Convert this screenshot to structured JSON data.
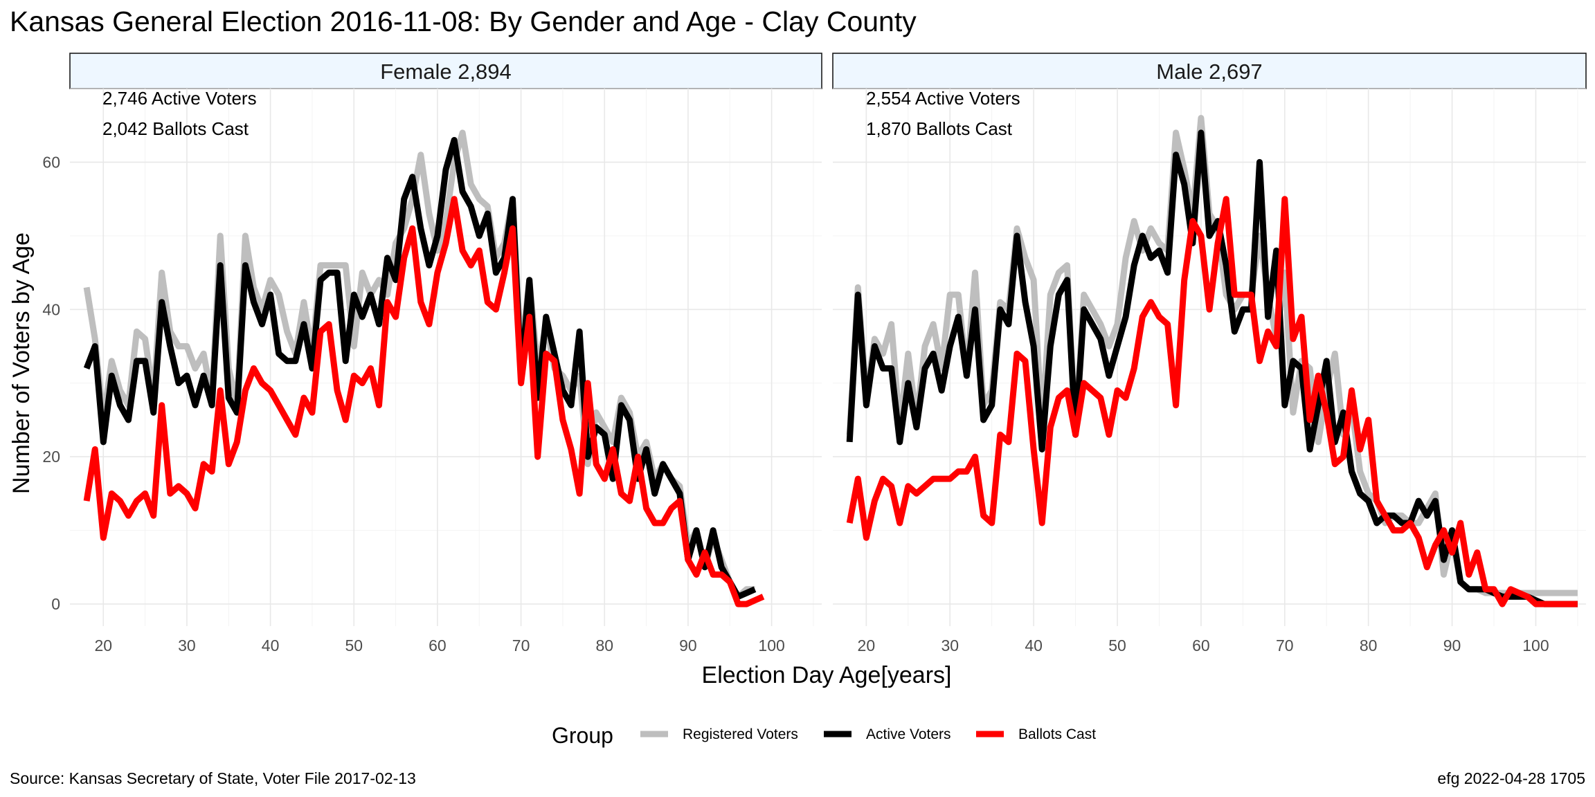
{
  "chart_data": {
    "type": "line",
    "title": "Kansas General Election 2016-11-08:  By Gender and Age - Clay County",
    "xlabel": "Election Day Age[years]",
    "ylabel": "Number of Voters by Age",
    "caption_left": "Source:  Kansas Secretary of State, Voter File  2017-02-13",
    "caption_right": "efg 2022-04-28 1705",
    "legend_title": "Group",
    "legend_position": "bottom",
    "grid": true,
    "xlim": [
      16,
      106
    ],
    "ylim": [
      -3,
      70
    ],
    "x_ticks": [
      20,
      30,
      40,
      50,
      60,
      70,
      80,
      90,
      100
    ],
    "y_ticks": [
      0,
      20,
      40,
      60
    ],
    "series_styles": [
      {
        "key": "registered",
        "name": "Registered Voters",
        "color": "#bebebe"
      },
      {
        "key": "active",
        "name": "Active Voters",
        "color": "#000000"
      },
      {
        "key": "ballots",
        "name": "Ballots Cast",
        "color": "#ff0000"
      }
    ],
    "panels": [
      {
        "strip": "Female 2,894",
        "annotations": [
          "2,746 Active Voters",
          "2,042 Ballots Cast"
        ],
        "x_start": 18,
        "series": {
          "registered": [
            43,
            36,
            25,
            33,
            29,
            27,
            37,
            36,
            28,
            45,
            37,
            35,
            35,
            32,
            34,
            28,
            50,
            32,
            27,
            50,
            43,
            40,
            44,
            42,
            37,
            34,
            41,
            34,
            46,
            46,
            46,
            46,
            35,
            45,
            42,
            44,
            42,
            49,
            51,
            55,
            61,
            53,
            48,
            52,
            60,
            64,
            57,
            55,
            54,
            47,
            49,
            55,
            34,
            44,
            32,
            38,
            32,
            31,
            29,
            31,
            19,
            26,
            24,
            22,
            28,
            26,
            20,
            22,
            17,
            19,
            17,
            16,
            8,
            10,
            5,
            9,
            6,
            3,
            1,
            2,
            2
          ],
          "active": [
            32,
            35,
            22,
            31,
            27,
            25,
            33,
            33,
            26,
            41,
            35,
            30,
            31,
            27,
            31,
            27,
            46,
            28,
            26,
            46,
            41,
            38,
            42,
            34,
            33,
            33,
            38,
            32,
            44,
            45,
            45,
            33,
            42,
            39,
            42,
            38,
            47,
            44,
            55,
            58,
            51,
            46,
            50,
            59,
            63,
            56,
            54,
            50,
            53,
            45,
            47,
            55,
            31,
            44,
            28,
            39,
            34,
            29,
            27,
            37,
            20,
            24,
            23,
            17,
            27,
            25,
            17,
            21,
            15,
            19,
            17,
            15,
            6,
            10,
            5,
            10,
            5,
            3,
            1,
            1.5,
            2
          ],
          "ballots": [
            14,
            21,
            9,
            15,
            14,
            12,
            14,
            15,
            12,
            27,
            15,
            16,
            15,
            13,
            19,
            18,
            29,
            19,
            22,
            29,
            32,
            30,
            29,
            27,
            25,
            23,
            28,
            26,
            37,
            38,
            29,
            25,
            31,
            30,
            32,
            27,
            41,
            39,
            47,
            51,
            41,
            38,
            45,
            49,
            55,
            48,
            46,
            48,
            41,
            40,
            45,
            51,
            30,
            39,
            20,
            34,
            33,
            25,
            21,
            15,
            30,
            19,
            17,
            21,
            15,
            14,
            20,
            13,
            11,
            11,
            13,
            14,
            6,
            4,
            7,
            4,
            4,
            3,
            0,
            0,
            0.5,
            1
          ]
        }
      },
      {
        "strip": "Male 2,697",
        "annotations": [
          "2,554 Active Voters",
          "1,870 Ballots Cast"
        ],
        "x_start": 18,
        "series": {
          "registered": [
            23,
            43,
            28,
            36,
            34,
            38,
            24,
            34,
            25,
            35,
            38,
            32,
            42,
            42,
            31,
            45,
            27,
            29,
            41,
            40,
            51,
            47,
            44,
            24,
            42,
            45,
            46,
            23,
            42,
            40,
            38,
            35,
            38,
            47,
            52,
            48,
            51,
            49,
            48,
            64,
            59,
            53,
            66,
            53,
            51,
            42,
            40,
            42,
            42,
            50,
            42,
            36,
            45,
            26,
            33,
            32,
            22,
            29,
            34,
            23,
            27,
            18,
            15,
            14,
            11,
            12,
            12,
            11,
            11,
            13,
            15,
            4,
            9,
            3,
            2,
            2,
            1.5,
            1.5,
            1.5,
            1.5,
            1.5,
            1.5,
            1.5,
            1.5,
            1.5,
            1.5,
            1.5,
            1.5
          ],
          "active": [
            22,
            42,
            27,
            35,
            32,
            32,
            22,
            30,
            24,
            32,
            34,
            29,
            35,
            39,
            31,
            40,
            25,
            27,
            40,
            38,
            50,
            41,
            35,
            21,
            35,
            42,
            44,
            23,
            40,
            38,
            36,
            31,
            35,
            39,
            46,
            50,
            47,
            48,
            45,
            61,
            57,
            49,
            64,
            50,
            52,
            46,
            37,
            40,
            40,
            60,
            39,
            48,
            27,
            33,
            32,
            21,
            27,
            33,
            22,
            26,
            18,
            15,
            14,
            11,
            12,
            12,
            11,
            11,
            14,
            12,
            14,
            6,
            10,
            3,
            2,
            2,
            2,
            1.5,
            1,
            1,
            1,
            1,
            0.5,
            0,
            0,
            0,
            0,
            0
          ],
          "ballots": [
            11,
            17,
            9,
            14,
            17,
            16,
            11,
            16,
            15,
            16,
            17,
            17,
            17,
            18,
            18,
            20,
            12,
            11,
            23,
            22,
            34,
            33,
            21,
            11,
            24,
            28,
            29,
            23,
            30,
            29,
            28,
            23,
            29,
            28,
            32,
            39,
            41,
            39,
            38,
            27,
            44,
            52,
            50,
            40,
            49,
            55,
            42,
            42,
            42,
            33,
            37,
            35,
            55,
            36,
            39,
            25,
            31,
            26,
            19,
            20,
            29,
            21,
            25,
            14,
            12,
            10,
            10,
            11,
            9,
            5,
            8,
            10,
            7,
            11,
            4,
            7,
            2,
            2,
            0,
            2,
            1.5,
            1,
            0,
            0,
            0,
            0,
            0,
            0
          ]
        }
      }
    ]
  }
}
